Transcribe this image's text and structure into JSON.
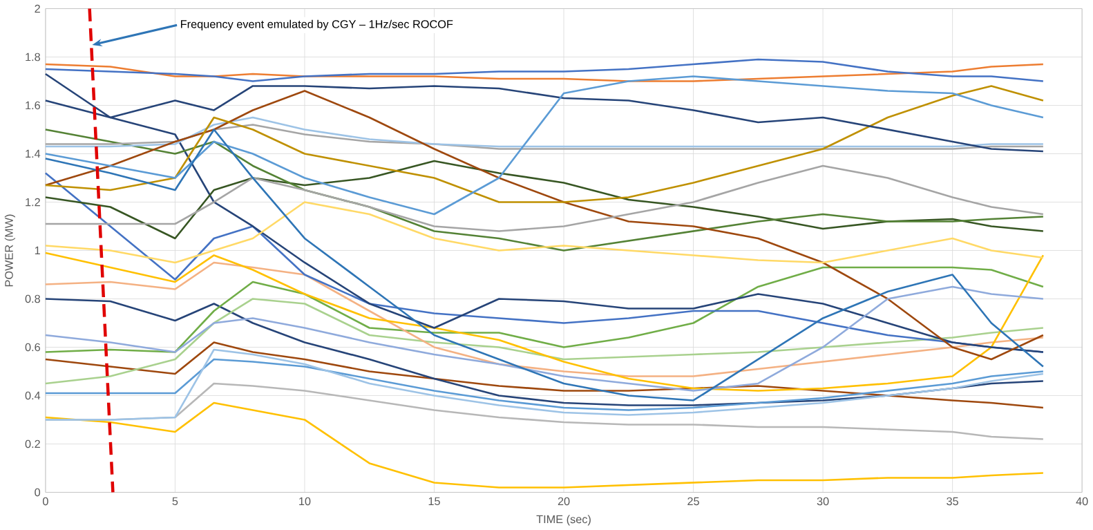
{
  "chart_data": {
    "type": "line",
    "xlabel": "TIME (sec)",
    "ylabel": "POWER (MW)",
    "xlim": [
      0,
      40
    ],
    "ylim": [
      0,
      2
    ],
    "xticks": [
      0,
      5,
      10,
      15,
      20,
      25,
      30,
      35,
      40
    ],
    "yticks": [
      0,
      0.2,
      0.4,
      0.6,
      0.8,
      1,
      1.2,
      1.4,
      1.6,
      1.8,
      2
    ],
    "grid": true,
    "annotations": [
      {
        "text": "Frequency event emulated by CGY – 1Hz/sec ROCOF",
        "x": 1.8,
        "y": 1.85
      }
    ],
    "x": [
      0,
      2.5,
      5,
      6.5,
      8,
      10,
      12.5,
      15,
      17.5,
      20,
      22.5,
      25,
      27.5,
      30,
      32.5,
      35,
      36.5,
      38.5
    ],
    "series": [
      {
        "color": "#ffc000",
        "values": [
          0.31,
          0.29,
          0.25,
          0.37,
          0.34,
          0.3,
          0.12,
          0.04,
          0.02,
          0.02,
          0.03,
          0.04,
          0.05,
          0.05,
          0.06,
          0.06,
          0.07,
          0.08
        ]
      },
      {
        "color": "#9e480e",
        "values": [
          0.55,
          0.52,
          0.49,
          0.62,
          0.58,
          0.55,
          0.5,
          0.47,
          0.44,
          0.42,
          0.42,
          0.43,
          0.44,
          0.42,
          0.4,
          0.38,
          0.37,
          0.35
        ]
      },
      {
        "color": "#264478",
        "values": [
          0.8,
          0.79,
          0.71,
          0.78,
          0.7,
          0.62,
          0.55,
          0.47,
          0.4,
          0.37,
          0.36,
          0.36,
          0.37,
          0.38,
          0.4,
          0.43,
          0.45,
          0.46
        ]
      },
      {
        "color": "#5b9bd5",
        "values": [
          0.41,
          0.41,
          0.41,
          0.55,
          0.54,
          0.52,
          0.47,
          0.42,
          0.38,
          0.35,
          0.34,
          0.35,
          0.37,
          0.39,
          0.42,
          0.45,
          0.48,
          0.5
        ]
      },
      {
        "color": "#b7b7b7",
        "values": [
          0.3,
          0.3,
          0.31,
          0.45,
          0.44,
          0.42,
          0.38,
          0.34,
          0.31,
          0.29,
          0.28,
          0.28,
          0.27,
          0.27,
          0.26,
          0.25,
          0.23,
          0.22
        ]
      },
      {
        "color": "#9dc3e6",
        "values": [
          0.3,
          0.3,
          0.31,
          0.59,
          0.57,
          0.53,
          0.45,
          0.4,
          0.36,
          0.33,
          0.32,
          0.33,
          0.35,
          0.37,
          0.4,
          0.43,
          0.46,
          0.49
        ]
      },
      {
        "color": "#70ad47",
        "values": [
          0.58,
          0.59,
          0.58,
          0.75,
          0.87,
          0.82,
          0.68,
          0.66,
          0.66,
          0.6,
          0.64,
          0.7,
          0.85,
          0.93,
          0.93,
          0.93,
          0.92,
          0.85
        ]
      },
      {
        "color": "#a9d18e",
        "values": [
          0.45,
          0.48,
          0.55,
          0.7,
          0.8,
          0.78,
          0.65,
          0.62,
          0.6,
          0.55,
          0.56,
          0.57,
          0.58,
          0.6,
          0.62,
          0.64,
          0.66,
          0.68
        ]
      },
      {
        "color": "#f4b183",
        "values": [
          0.86,
          0.87,
          0.84,
          0.95,
          0.93,
          0.9,
          0.75,
          0.6,
          0.53,
          0.5,
          0.48,
          0.48,
          0.51,
          0.54,
          0.57,
          0.6,
          0.62,
          0.64
        ]
      },
      {
        "color": "#ffc000",
        "values": [
          0.99,
          0.93,
          0.87,
          0.98,
          0.92,
          0.82,
          0.72,
          0.68,
          0.63,
          0.54,
          0.47,
          0.43,
          0.42,
          0.43,
          0.45,
          0.48,
          0.6,
          0.98
        ]
      },
      {
        "color": "#4472c4",
        "values": [
          1.32,
          1.1,
          0.88,
          1.05,
          1.1,
          0.9,
          0.78,
          0.74,
          0.72,
          0.7,
          0.72,
          0.75,
          0.75,
          0.7,
          0.65,
          0.62,
          0.6,
          0.58
        ]
      },
      {
        "color": "#264478",
        "values": [
          1.62,
          1.55,
          1.48,
          1.2,
          1.1,
          0.95,
          0.78,
          0.68,
          0.8,
          0.79,
          0.76,
          0.76,
          0.82,
          0.78,
          0.7,
          0.62,
          0.6,
          0.58
        ]
      },
      {
        "color": "#375623",
        "values": [
          1.22,
          1.18,
          1.05,
          1.25,
          1.3,
          1.27,
          1.3,
          1.37,
          1.32,
          1.28,
          1.21,
          1.18,
          1.14,
          1.09,
          1.12,
          1.13,
          1.1,
          1.08
        ]
      },
      {
        "color": "#548235",
        "values": [
          1.5,
          1.45,
          1.4,
          1.45,
          1.35,
          1.25,
          1.18,
          1.08,
          1.05,
          1.0,
          1.04,
          1.08,
          1.12,
          1.15,
          1.12,
          1.12,
          1.13,
          1.14
        ]
      },
      {
        "color": "#ed7d31",
        "values": [
          1.77,
          1.76,
          1.72,
          1.72,
          1.73,
          1.72,
          1.72,
          1.72,
          1.71,
          1.71,
          1.7,
          1.7,
          1.71,
          1.72,
          1.73,
          1.74,
          1.76,
          1.77
        ]
      },
      {
        "color": "#4472c4",
        "values": [
          1.75,
          1.74,
          1.73,
          1.72,
          1.7,
          1.72,
          1.73,
          1.73,
          1.74,
          1.74,
          1.75,
          1.77,
          1.79,
          1.78,
          1.74,
          1.72,
          1.72,
          1.7
        ]
      },
      {
        "color": "#a5a5a5",
        "values": [
          1.44,
          1.44,
          1.45,
          1.5,
          1.52,
          1.48,
          1.45,
          1.44,
          1.42,
          1.42,
          1.42,
          1.42,
          1.42,
          1.42,
          1.42,
          1.42,
          1.43,
          1.43
        ]
      },
      {
        "color": "#9dc3e6",
        "values": [
          1.43,
          1.43,
          1.44,
          1.52,
          1.55,
          1.5,
          1.46,
          1.44,
          1.43,
          1.43,
          1.43,
          1.43,
          1.43,
          1.43,
          1.43,
          1.43,
          1.44,
          1.44
        ]
      },
      {
        "color": "#9e480e",
        "values": [
          1.27,
          1.35,
          1.45,
          1.5,
          1.58,
          1.66,
          1.55,
          1.42,
          1.3,
          1.2,
          1.12,
          1.1,
          1.05,
          0.95,
          0.8,
          0.6,
          0.55,
          0.65
        ]
      },
      {
        "color": "#bf9000",
        "values": [
          1.27,
          1.25,
          1.3,
          1.55,
          1.5,
          1.4,
          1.35,
          1.3,
          1.2,
          1.2,
          1.22,
          1.28,
          1.35,
          1.42,
          1.55,
          1.64,
          1.68,
          1.62
        ]
      },
      {
        "color": "#264478",
        "values": [
          1.73,
          1.55,
          1.62,
          1.58,
          1.68,
          1.68,
          1.67,
          1.68,
          1.67,
          1.63,
          1.62,
          1.58,
          1.53,
          1.55,
          1.5,
          1.45,
          1.42,
          1.41
        ]
      },
      {
        "color": "#5b9bd5",
        "values": [
          1.4,
          1.35,
          1.3,
          1.45,
          1.4,
          1.3,
          1.22,
          1.15,
          1.3,
          1.65,
          1.7,
          1.72,
          1.7,
          1.68,
          1.66,
          1.65,
          1.6,
          1.55
        ]
      },
      {
        "color": "#ffd966",
        "values": [
          1.02,
          1.0,
          0.95,
          1.0,
          1.05,
          1.2,
          1.15,
          1.05,
          1.0,
          1.02,
          1.0,
          0.98,
          0.96,
          0.95,
          1.0,
          1.05,
          1.0,
          0.97
        ]
      },
      {
        "color": "#a5a5a5",
        "values": [
          1.11,
          1.11,
          1.11,
          1.2,
          1.3,
          1.25,
          1.18,
          1.1,
          1.08,
          1.1,
          1.15,
          1.2,
          1.28,
          1.35,
          1.3,
          1.22,
          1.18,
          1.15
        ]
      },
      {
        "color": "#8faadc",
        "values": [
          0.65,
          0.62,
          0.58,
          0.7,
          0.72,
          0.68,
          0.62,
          0.57,
          0.53,
          0.48,
          0.45,
          0.42,
          0.45,
          0.6,
          0.8,
          0.85,
          0.82,
          0.8
        ]
      },
      {
        "color": "#2e75b6",
        "values": [
          1.38,
          1.32,
          1.25,
          1.5,
          1.3,
          1.05,
          0.85,
          0.65,
          0.55,
          0.45,
          0.4,
          0.38,
          0.55,
          0.72,
          0.83,
          0.9,
          0.7,
          0.52
        ]
      },
      {
        "color": "#e00000",
        "line_style": "dashed",
        "x": [
          1.7,
          2.6
        ],
        "values": [
          2,
          0
        ]
      }
    ]
  }
}
